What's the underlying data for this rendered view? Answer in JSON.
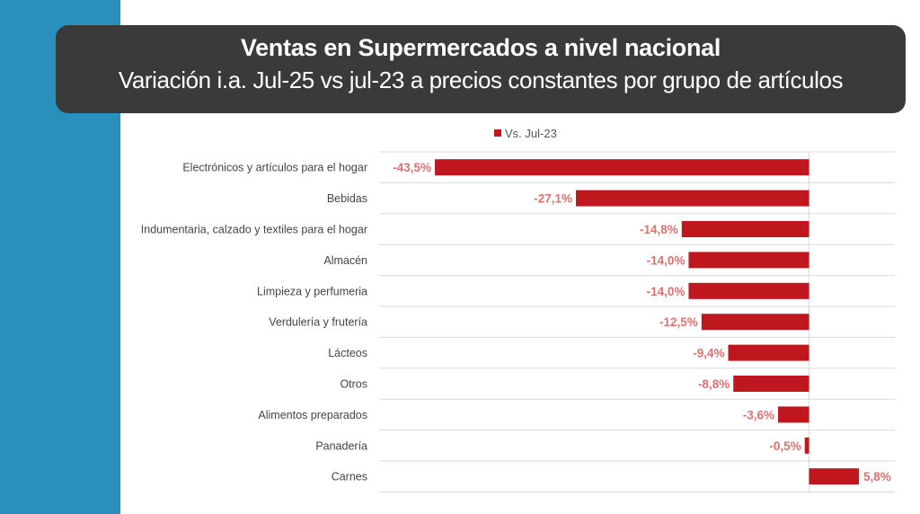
{
  "header": {
    "title": "Ventas en Supermercados a nivel nacional",
    "subtitle": "Variación i.a.  Jul-25 vs jul-23 a precios constantes por grupo de artículos"
  },
  "colors": {
    "sidebar": "#2a8fbd",
    "title_bg": "#3a3a3a",
    "bar": "#c0171e",
    "bar_label": "#e07070",
    "grid": "#d9d9d9",
    "category_text": "#444444"
  },
  "chart_data": {
    "type": "bar",
    "orientation": "horizontal",
    "categories": [
      "Electrónicos y artículos para el hogar",
      "Bebidas",
      "Indumentaria, calzado y textiles para el hogar",
      "Almacén",
      "Limpieza y perfumeria",
      "Verdulería y frutería",
      "Lácteos",
      "Otros",
      "Alimentos preparados",
      "Panadería",
      "Carnes"
    ],
    "series": [
      {
        "name": "Vs. Jul-23",
        "values": [
          -43.5,
          -27.1,
          -14.8,
          -14.0,
          -14.0,
          -12.5,
          -9.4,
          -8.8,
          -3.6,
          -0.5,
          5.8
        ],
        "labels": [
          "-43,5%",
          "-27,1%",
          "-14,8%",
          "-14,0%",
          "-14,0%",
          "-12,5%",
          "-9,4%",
          "-8,8%",
          "-3,6%",
          "-0,5%",
          "5,8%"
        ]
      }
    ],
    "xlim": [
      -50,
      10
    ],
    "legend_position": "top",
    "grid": "horizontal"
  }
}
